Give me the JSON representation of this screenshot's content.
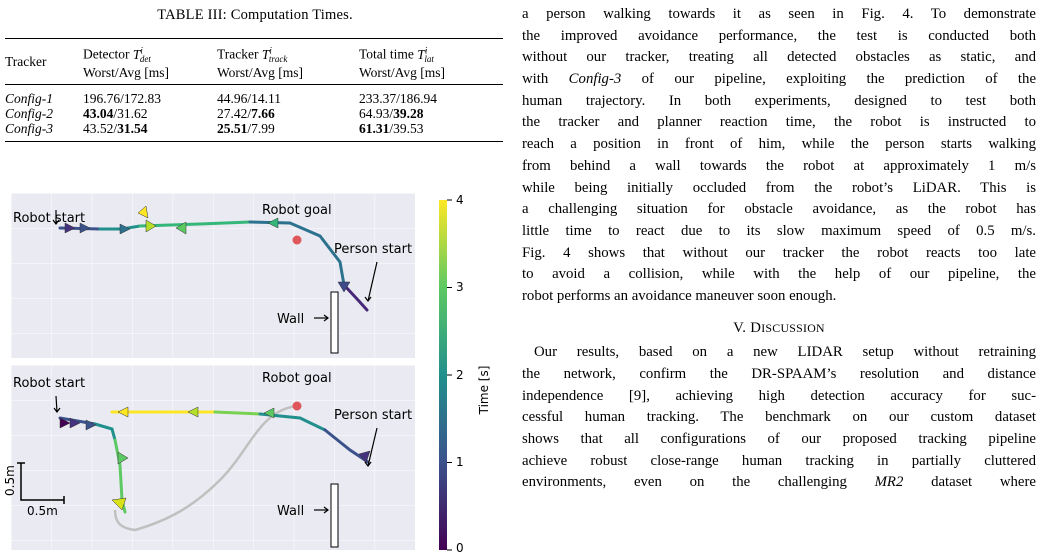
{
  "table": {
    "caption": "TABLE III: Computation Times.",
    "headers": {
      "tracker": "Tracker",
      "det_line1": "Detector",
      "det_line2": "Worst/Avg [ms]",
      "trk_line1": "Tracker",
      "trk_line2": "Worst/Avg [ms]",
      "tot_line1": "Total time",
      "tot_line2": "Worst/Avg [ms]"
    },
    "rows": [
      {
        "name": "Config-1",
        "det_worst": "196.76",
        "det_avg": "172.83",
        "trk_worst": "44.96",
        "trk_avg": "14.11",
        "tot_worst": "233.37",
        "tot_avg": "186.94"
      },
      {
        "name": "Config-2",
        "det_worst": "43.04",
        "det_avg": "31.62",
        "trk_worst": "27.42",
        "trk_avg": "7.66",
        "tot_worst": "64.93",
        "tot_avg": "39.28"
      },
      {
        "name": "Config-3",
        "det_worst": "43.52",
        "det_avg": "31.54",
        "trk_worst": "25.51",
        "trk_avg": "7.99",
        "tot_worst": "61.31",
        "tot_avg": "39.53"
      }
    ]
  },
  "figure": {
    "top_labels": {
      "robot_start": "Robot start",
      "robot_goal": "Robot goal",
      "person_start": "Person start",
      "wall": "Wall"
    },
    "bottom_labels": {
      "robot_start": "Robot start",
      "robot_goal": "Robot goal",
      "person_start": "Person start",
      "wall": "Wall"
    },
    "scale_y": "0.5m",
    "scale_x": "0.5m",
    "colorbar": {
      "label": "Time [s]",
      "ticks": [
        "4",
        "3",
        "2",
        "1",
        "0"
      ]
    }
  },
  "text": {
    "para1": [
      "a person walking towards it as seen in Fig. 4. To demonstrate",
      "the improved avoidance performance, the test is conducted both",
      "without our tracker, treating all detected obstacles as static, and",
      "with",
      "of our pipeline, exploiting the prediction of the",
      "human trajectory. In both experiments, designed to test both",
      "the tracker and planner reaction time, the robot is instructed to",
      "reach a position in front of him, while the person starts walking",
      "from behind a wall towards the robot at approximately 1 m/s",
      "while being initially occluded from the robot’s LiDAR. This is",
      "a challenging situation for obstacle avoidance, as the robot has",
      "little time to react due to its slow maximum speed of 0.5 m/s.",
      "Fig. 4 shows that without our tracker the robot reacts too late",
      "to avoid a collision, while with the help of our pipeline, the",
      "robot performs an avoidance maneuver soon enough."
    ],
    "config3": "Config-3",
    "section_num": "V. D",
    "section_rest": "ISCUSSION",
    "para2": [
      "Our results, based on a new LIDAR setup without retraining",
      "the network, confirm the DR-SPAAM’s resolution and distance",
      "independence [9], achieving high detection accuracy for suc-",
      "cessful human tracking. The benchmark on our custom dataset",
      "shows that all configurations of our proposed tracking pipeline",
      "achieve robust close-range human tracking in partially cluttered",
      "environments, even on the challenging",
      "dataset where"
    ],
    "mr2": "MR2"
  }
}
